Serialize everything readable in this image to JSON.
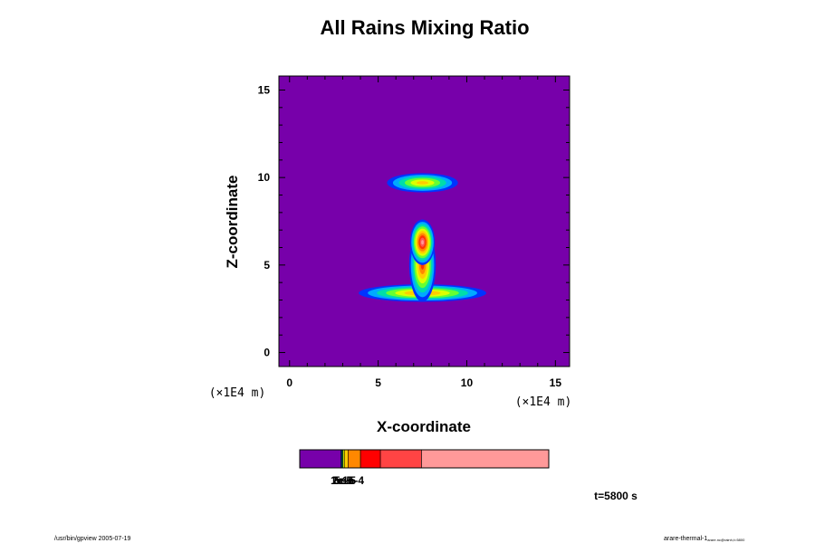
{
  "chart_data": {
    "type": "heatmap",
    "title": "All Rains Mixing Ratio",
    "xlabel": "X-coordinate",
    "ylabel": "Z-coordinate",
    "x_unit": "(×1E4 m)",
    "y_unit": "(×1E4 m)",
    "xlim": [
      -0.6,
      15.8
    ],
    "ylim": [
      -0.8,
      15.8
    ],
    "x_ticks": [
      0,
      5,
      10,
      15
    ],
    "y_ticks": [
      0,
      5,
      10,
      15
    ],
    "background_color": "#7700aa",
    "contour_colors": [
      "#7700aa",
      "#0033ff",
      "#00aaff",
      "#00ddaa",
      "#66ff33",
      "#ddff00",
      "#ffcc00",
      "#ff8800",
      "#ff3300",
      "#ff5555",
      "#ff9999"
    ],
    "features": [
      {
        "name": "upper band",
        "center": [
          7.5,
          9.7
        ],
        "half_width": 2.0,
        "half_height": 0.55,
        "peak_level": 6
      },
      {
        "name": "lower anvil",
        "center": [
          7.5,
          3.4
        ],
        "half_width": 3.6,
        "half_height": 0.5,
        "peak_level": 7
      },
      {
        "name": "column",
        "center": [
          7.5,
          5.0
        ],
        "half_width": 0.75,
        "half_height": 2.1,
        "peak_level": 8
      },
      {
        "name": "core",
        "center": [
          7.5,
          6.3
        ],
        "half_width": 0.7,
        "half_height": 1.3,
        "peak_level": 10
      }
    ],
    "colorbar": {
      "labels": [
        "1e-5",
        "2e-5",
        "5e-5",
        "1e-4"
      ],
      "segments": [
        {
          "color": "#7700aa",
          "fraction": 0.165
        },
        {
          "color": "#0033ff",
          "fraction": 0.004
        },
        {
          "color": "#00ddaa",
          "fraction": 0.004
        },
        {
          "color": "#ddff00",
          "fraction": 0.006
        },
        {
          "color": "#ffcc00",
          "fraction": 0.015
        },
        {
          "color": "#ff8800",
          "fraction": 0.05
        },
        {
          "color": "#ff0000",
          "fraction": 0.08
        },
        {
          "color": "#ff4444",
          "fraction": 0.165
        },
        {
          "color": "#ff9999",
          "fraction": 0.511
        }
      ]
    }
  },
  "footer": {
    "time_label": "t=5800 s",
    "left_note": "/usr/bin/gpview 2005-07-19",
    "right_note": "arare-thermal-1",
    "right_note_sub": "arare.nc@rainh,t=5800"
  }
}
